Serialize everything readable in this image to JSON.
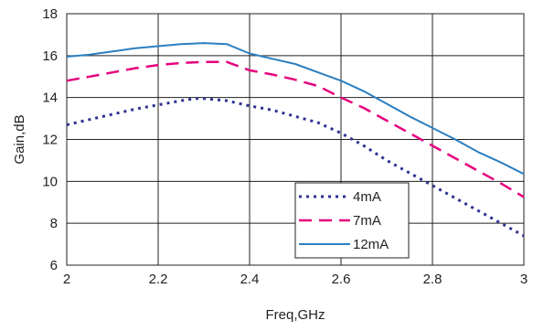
{
  "chart_data": {
    "type": "line",
    "title": "",
    "xlabel": "Freq,GHz",
    "ylabel": "Gain,dB",
    "xlim": [
      2,
      3
    ],
    "ylim": [
      6,
      18
    ],
    "xticks": [
      2,
      2.2,
      2.4,
      2.6,
      2.8,
      3
    ],
    "yticks": [
      6,
      8,
      10,
      12,
      14,
      16,
      18
    ],
    "xtick_labels": [
      "2",
      "2.2",
      "2.4",
      "2.6",
      "2.8",
      "3"
    ],
    "ytick_labels": [
      "6",
      "8",
      "10",
      "12",
      "14",
      "16",
      "18"
    ],
    "grid": true,
    "legend_position": "bottom-right",
    "series": [
      {
        "name": "4mA",
        "color": "#2e3192",
        "style": "dotted",
        "x": [
          2.0,
          2.05,
          2.1,
          2.15,
          2.2,
          2.25,
          2.28,
          2.3,
          2.35,
          2.4,
          2.45,
          2.5,
          2.55,
          2.6,
          2.65,
          2.7,
          2.75,
          2.8,
          2.85,
          2.9,
          2.95,
          3.0
        ],
        "y": [
          12.7,
          12.95,
          13.2,
          13.45,
          13.65,
          13.85,
          13.95,
          13.95,
          13.85,
          13.6,
          13.4,
          13.1,
          12.8,
          12.3,
          11.7,
          11.0,
          10.4,
          9.8,
          9.2,
          8.6,
          8.0,
          7.4
        ]
      },
      {
        "name": "7mA",
        "color": "#e6007e",
        "style": "dashed",
        "x": [
          2.0,
          2.05,
          2.1,
          2.15,
          2.2,
          2.25,
          2.3,
          2.35,
          2.4,
          2.45,
          2.5,
          2.55,
          2.6,
          2.65,
          2.7,
          2.75,
          2.8,
          2.85,
          2.9,
          2.95,
          3.0
        ],
        "y": [
          14.8,
          15.0,
          15.2,
          15.4,
          15.55,
          15.65,
          15.7,
          15.7,
          15.3,
          15.1,
          14.85,
          14.55,
          14.0,
          13.5,
          12.9,
          12.3,
          11.7,
          11.1,
          10.5,
          9.9,
          9.25
        ]
      },
      {
        "name": "12mA",
        "color": "#2b7fc1",
        "style": "solid",
        "x": [
          2.0,
          2.05,
          2.1,
          2.15,
          2.2,
          2.25,
          2.3,
          2.35,
          2.4,
          2.45,
          2.5,
          2.55,
          2.6,
          2.65,
          2.7,
          2.75,
          2.8,
          2.85,
          2.9,
          2.95,
          3.0
        ],
        "y": [
          15.95,
          16.05,
          16.2,
          16.35,
          16.45,
          16.55,
          16.6,
          16.55,
          16.1,
          15.85,
          15.6,
          15.2,
          14.8,
          14.3,
          13.7,
          13.1,
          12.55,
          12.0,
          11.4,
          10.9,
          10.35
        ]
      }
    ]
  }
}
